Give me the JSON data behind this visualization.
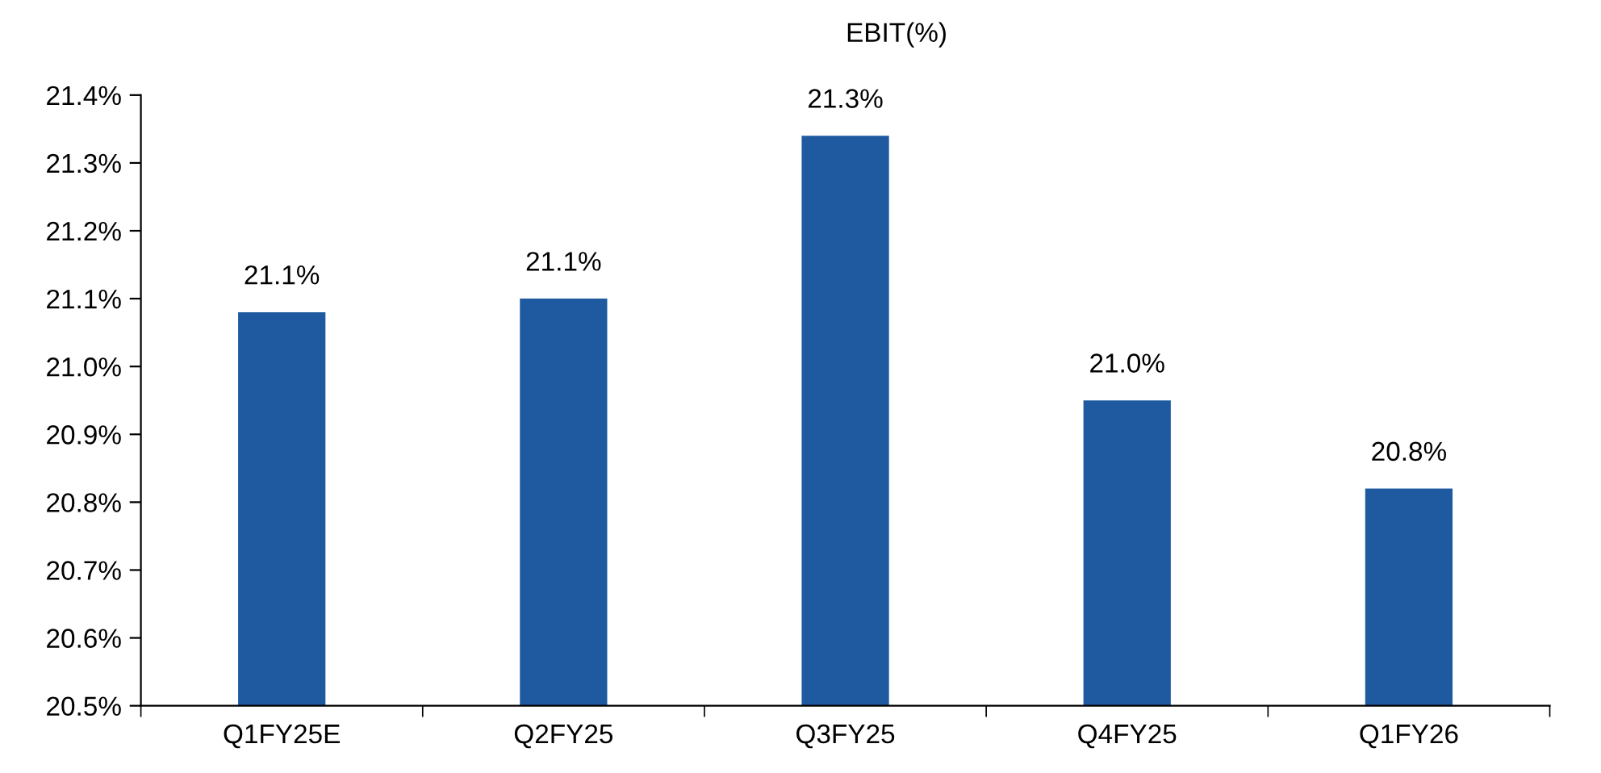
{
  "chart_data": {
    "type": "bar",
    "title": "EBIT(%)",
    "categories": [
      "Q1FY25E",
      "Q2FY25",
      "Q3FY25",
      "Q4FY25",
      "Q1FY26"
    ],
    "values": [
      21.08,
      21.1,
      21.34,
      20.95,
      20.82
    ],
    "value_labels": [
      "21.1%",
      "21.1%",
      "21.3%",
      "21.0%",
      "20.8%"
    ],
    "color": "#1f5aa0",
    "ylim": [
      20.5,
      21.4
    ],
    "yticks": [
      {
        "value": 20.5,
        "label": "20.5%"
      },
      {
        "value": 20.6,
        "label": "20.6%"
      },
      {
        "value": 20.7,
        "label": "20.7%"
      },
      {
        "value": 20.8,
        "label": "20.8%"
      },
      {
        "value": 20.9,
        "label": "20.9%"
      },
      {
        "value": 21.0,
        "label": "21.0%"
      },
      {
        "value": 21.1,
        "label": "21.1%"
      },
      {
        "value": 21.2,
        "label": "21.2%"
      },
      {
        "value": 21.3,
        "label": "21.3%"
      },
      {
        "value": 21.4,
        "label": "21.4%"
      }
    ],
    "grid": false,
    "legend": false
  }
}
